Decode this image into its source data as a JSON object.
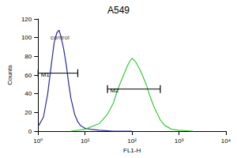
{
  "chart_data": {
    "type": "line",
    "title": "A549",
    "x_label": "FL1-H",
    "y_label": "Counts",
    "log": "x",
    "grid": false,
    "xlim": [
      1,
      10000
    ],
    "xticks": [
      {
        "value": 1,
        "label": "10⁰"
      },
      {
        "value": 10,
        "label": "10¹"
      },
      {
        "value": 100,
        "label": "10²"
      },
      {
        "value": 1000,
        "label": "10³"
      },
      {
        "value": 10000,
        "label": "10⁴"
      }
    ],
    "ylim": [
      0,
      120
    ],
    "yticks": [
      0,
      20,
      40,
      60,
      80,
      100,
      120
    ],
    "series": [
      {
        "color": "#2b2b9c",
        "x": [
          1,
          1.3,
          1.6,
          1.9,
          2.2,
          2.5,
          2.8,
          3.1,
          3.5,
          4,
          4.5,
          5,
          6,
          7,
          8,
          10,
          13,
          20,
          40,
          100
        ],
        "values": [
          5,
          15,
          40,
          70,
          95,
          105,
          108,
          100,
          88,
          70,
          50,
          35,
          18,
          10,
          6,
          3,
          2,
          1,
          0,
          0
        ]
      },
      {
        "color": "#33cc33",
        "x": [
          5,
          10,
          20,
          30,
          40,
          50,
          60,
          70,
          80,
          90,
          100,
          120,
          150,
          200,
          250,
          300,
          400,
          500,
          700,
          1000,
          2000
        ],
        "values": [
          0,
          2,
          8,
          18,
          30,
          45,
          55,
          63,
          70,
          75,
          78,
          74,
          65,
          50,
          35,
          25,
          12,
          6,
          2,
          1,
          0
        ]
      }
    ],
    "gates": [
      {
        "label": "M1",
        "x": [
          1,
          7
        ],
        "y": 62
      },
      {
        "label": "M2",
        "x": [
          30,
          400
        ],
        "y": 45
      }
    ],
    "annotations": [
      {
        "text": "control",
        "x": 1.5,
        "y": 100
      }
    ]
  }
}
